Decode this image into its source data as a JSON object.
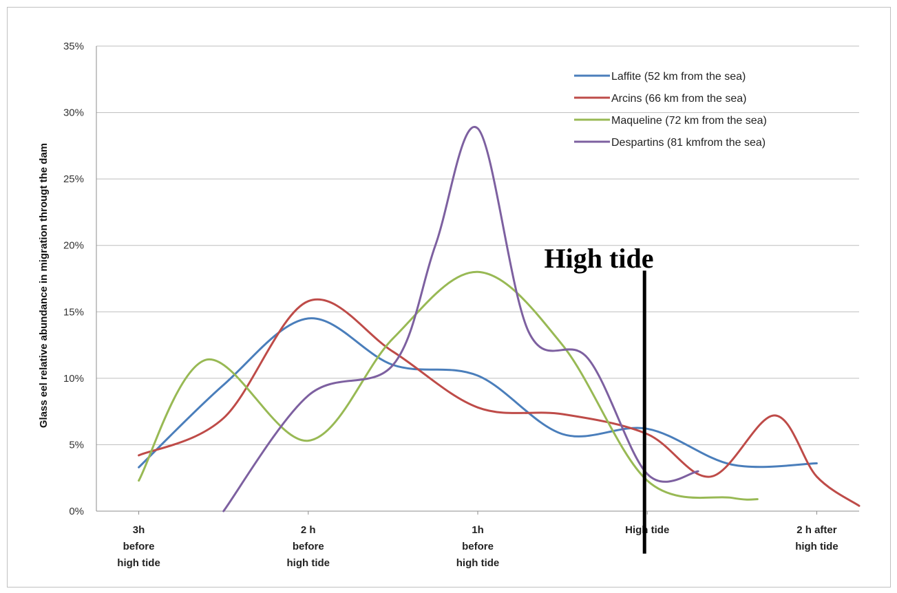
{
  "chart_data": {
    "type": "line",
    "title": "",
    "ylabel": "Glass eel relative abundance  in migration througt the dam",
    "xlabel": "",
    "ylim": [
      0,
      35
    ],
    "yticks": [
      "0%",
      "5%",
      "10%",
      "15%",
      "20%",
      "25%",
      "30%",
      "35%"
    ],
    "x_range": [
      -0.5,
      8.5
    ],
    "x_tick_positions": [
      0,
      2,
      4,
      6,
      8
    ],
    "x_tick_labels": [
      [
        "3h",
        "before",
        "high tide"
      ],
      [
        "2 h",
        "before",
        "high tide"
      ],
      [
        "1h",
        "before",
        "high tide"
      ],
      [
        "High tide"
      ],
      [
        "2 h after",
        "high tide"
      ]
    ],
    "legend_position": "top-right",
    "grid": "horizontal",
    "series": [
      {
        "name": "Laffite (52 km from the sea)",
        "color": "#4a7ebb",
        "points": [
          [
            0,
            3.3
          ],
          [
            1,
            9.5
          ],
          [
            2,
            14.5
          ],
          [
            3,
            11.0
          ],
          [
            4,
            10.2
          ],
          [
            5,
            5.8
          ],
          [
            6,
            6.2
          ],
          [
            7,
            3.5
          ],
          [
            8,
            3.6
          ]
        ]
      },
      {
        "name": "Arcins (66 km from the sea)",
        "color": "#be4b48",
        "points": [
          [
            0,
            4.2
          ],
          [
            1,
            7.0
          ],
          [
            2,
            15.8
          ],
          [
            3,
            12.0
          ],
          [
            4,
            7.8
          ],
          [
            5,
            7.3
          ],
          [
            6,
            5.8
          ],
          [
            6.75,
            2.6
          ],
          [
            7.5,
            7.2
          ],
          [
            8,
            2.6
          ],
          [
            8.5,
            0.4
          ]
        ]
      },
      {
        "name": "Maqueline (72 km from the sea)",
        "color": "#98b954",
        "points": [
          [
            0,
            2.3
          ],
          [
            0.8,
            11.4
          ],
          [
            2,
            5.3
          ],
          [
            3,
            13.0
          ],
          [
            4,
            18.0
          ],
          [
            5,
            12.5
          ],
          [
            6,
            2.3
          ],
          [
            7,
            1.0
          ],
          [
            7.3,
            0.9
          ]
        ]
      },
      {
        "name": "Despartins (81 kmfrom the sea)",
        "color": "#7d60a0",
        "points": [
          [
            1,
            0
          ],
          [
            2,
            8.7
          ],
          [
            3,
            11.0
          ],
          [
            3.5,
            20
          ],
          [
            4,
            28.8
          ],
          [
            4.6,
            13.5
          ],
          [
            5.3,
            11.5
          ],
          [
            6,
            2.8
          ],
          [
            6.6,
            3.0
          ]
        ]
      }
    ],
    "annotations": [
      {
        "text": "High tide",
        "x": 6.0,
        "line_top_y": 18.1,
        "line_bottom_y": -3.2
      }
    ]
  }
}
